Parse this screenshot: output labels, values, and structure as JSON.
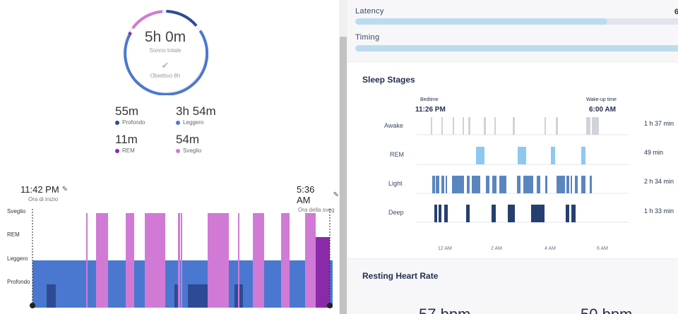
{
  "left": {
    "ring": {
      "total": "5h 0m",
      "total_label": "Sonno totale",
      "goal_label": "Obiettivo 8h",
      "check_icon": "check-icon"
    },
    "stats": [
      {
        "value": "55m",
        "label": "Profondo",
        "color": "#2e4a94"
      },
      {
        "value": "3h 54m",
        "label": "Leggero",
        "color": "#4a78d0"
      },
      {
        "value": "11m",
        "label": "REM",
        "color": "#8a2aa8"
      },
      {
        "value": "54m",
        "label": "Sveglio",
        "color": "#d07ad6"
      }
    ],
    "start": {
      "time": "11:42 PM",
      "label": "Ora di inizio"
    },
    "end": {
      "time": "5:36 AM",
      "label": "Ora della sveg"
    },
    "levels": [
      "Sveglio",
      "REM",
      "Leggero",
      "Profondo"
    ],
    "hypnogram_stages": [
      "Leggero",
      "Profondo",
      "Leggero",
      "Sveglio",
      "Leggero",
      "Sveglio",
      "Leggero",
      "Sveglio",
      "Leggero",
      "Profondo",
      "Sveglio",
      "Leggero",
      "Profondo",
      "Sveglio",
      "Leggero",
      "Profondo",
      "Leggero",
      "Sveglio",
      "Leggero",
      "Sveglio",
      "Leggero",
      "Sveglio",
      "REM",
      "Leggero"
    ]
  },
  "right": {
    "latency_label": "Latency",
    "latency_value": "6",
    "latency_fill": 0.76,
    "timing_label": "Timing",
    "timing_fill": 1.0,
    "stages_title": "Sleep Stages",
    "bedtime_label": "Bedtime",
    "bedtime": "11:26 PM",
    "wakeup_label": "Wake-up time",
    "wakeup": "6:00 AM",
    "rows": [
      {
        "name": "Awake",
        "duration": "1 h 37 min",
        "color": "#d0d3d9"
      },
      {
        "name": "REM",
        "duration": "49 min",
        "color": "#8ec8f0"
      },
      {
        "name": "Light",
        "duration": "2 h 34 min",
        "color": "#5a86c0"
      },
      {
        "name": "Deep",
        "duration": "1 h 33 min",
        "color": "#263f6e"
      }
    ],
    "ticks": [
      "12 AM",
      "2 AM",
      "4 AM",
      "6 AM"
    ],
    "rhr_title": "Resting Heart Rate",
    "rhr_left": "57 bpm",
    "rhr_right": "50 bpm"
  }
}
